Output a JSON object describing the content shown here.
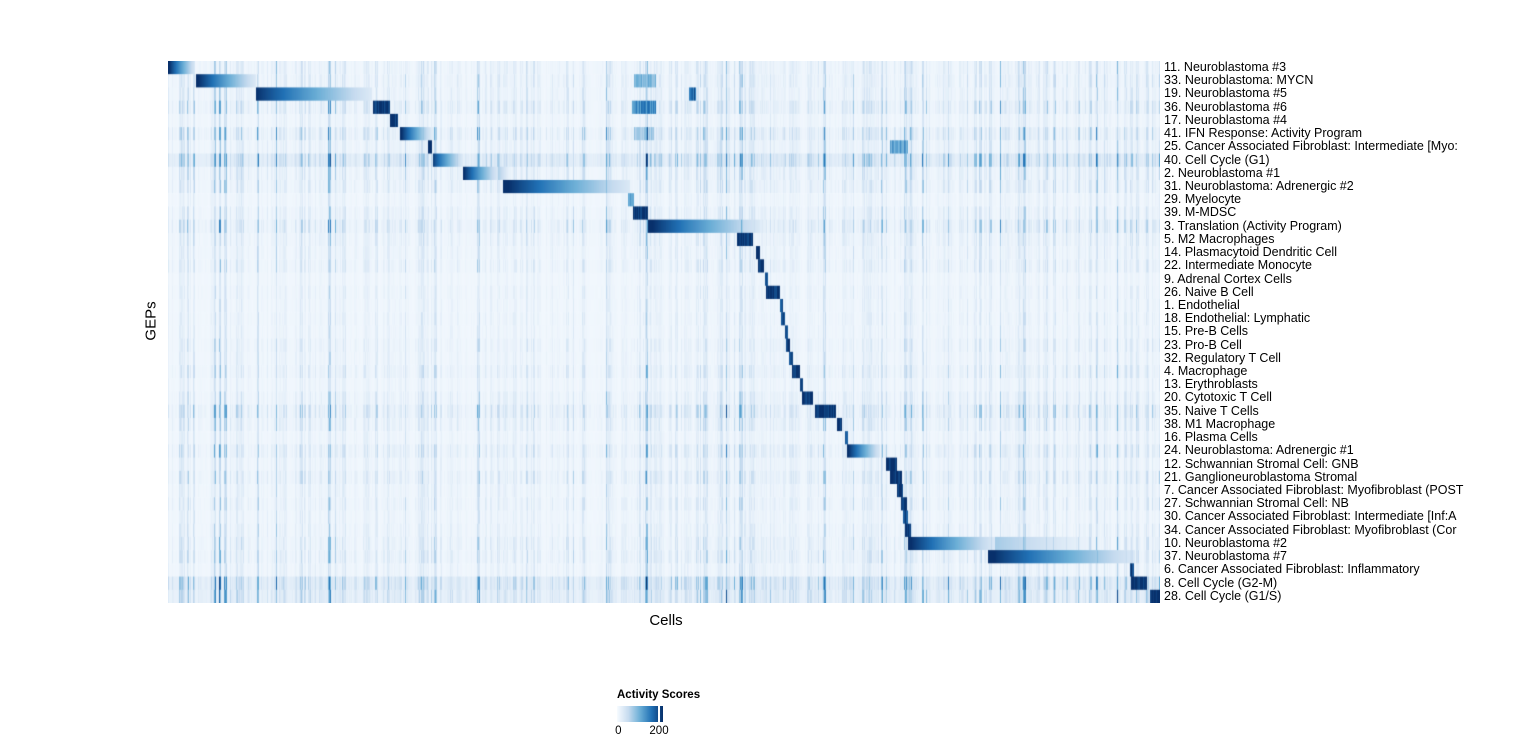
{
  "figure": {
    "xlabel": "Cells",
    "ylabel": "GEPs",
    "background_color": "#ffffff"
  },
  "legend": {
    "title": "Activity Scores",
    "ticks": [
      "0",
      "200"
    ]
  },
  "chart_data": {
    "type": "heatmap",
    "xlabel": "Cells",
    "ylabel": "GEPs",
    "row_label_side": "right",
    "n_rows": 41,
    "colorbar": {
      "label": "Activity Scores",
      "ticks": [
        0,
        200
      ],
      "colormap": "white-to-dark-blue (Blues)",
      "stops": [
        "#f7fbff",
        "#c6dbef",
        "#6baed6",
        "#2171b5",
        "#08306b"
      ]
    },
    "background_streak_zones": [
      [
        0.225,
        0.27,
        1.3
      ],
      [
        0.3,
        0.34,
        1.2
      ],
      [
        0.465,
        0.5,
        1.6
      ],
      [
        0.56,
        0.625,
        1.4
      ],
      [
        0.7,
        0.755,
        1.5
      ],
      [
        0.925,
        1.0,
        1.7
      ]
    ],
    "rows": [
      {
        "label": "11. Neuroblastoma #3",
        "block": [
          0.0,
          0.027
        ],
        "peak": 1.0,
        "fade": true,
        "bg": 0.5
      },
      {
        "label": "33. Neuroblastoma: MYCN",
        "block": [
          0.028,
          0.088
        ],
        "peak": 1.0,
        "fade": true,
        "bg": 0.55,
        "extra": [
          [
            0.47,
            0.492,
            0.45
          ]
        ]
      },
      {
        "label": "19. Neuroblastoma #5",
        "block": [
          0.088,
          0.205
        ],
        "peak": 0.95,
        "fade": true,
        "bg": 0.5,
        "extra": [
          [
            0.525,
            0.532,
            0.8
          ]
        ]
      },
      {
        "label": "36. Neuroblastoma #6",
        "block": [
          0.206,
          0.224
        ],
        "peak": 1.0,
        "fade": false,
        "bg": 0.8,
        "extra": [
          [
            0.468,
            0.492,
            0.65
          ]
        ]
      },
      {
        "label": "17. Neuroblastoma #4",
        "block": [
          0.224,
          0.232
        ],
        "peak": 1.0,
        "fade": false,
        "bg": 0.35
      },
      {
        "label": "41. IFN Response: Activity Program",
        "block": [
          0.234,
          0.265
        ],
        "peak": 1.0,
        "fade": true,
        "bg": 0.9,
        "extra": [
          [
            0.47,
            0.49,
            0.35
          ]
        ]
      },
      {
        "label": "25. Cancer Associated Fibroblast: Intermediate [Myo:",
        "block": [
          0.262,
          0.266
        ],
        "peak": 1.0,
        "fade": false,
        "bg": 0.5,
        "extra": [
          [
            0.728,
            0.746,
            0.55
          ]
        ]
      },
      {
        "label": "40. Cell Cycle (G1)",
        "block": [
          0.267,
          0.297
        ],
        "peak": 0.9,
        "fade": true,
        "bg": 1.1,
        "wash": 0.045
      },
      {
        "label": "2. Neuroblastoma #1",
        "block": [
          0.297,
          0.332
        ],
        "peak": 1.0,
        "fade": true,
        "bg": 0.6,
        "tail": 0.345
      },
      {
        "label": "31. Neuroblastoma: Adrenergic #2",
        "block": [
          0.338,
          0.466
        ],
        "peak": 1.0,
        "fade": true,
        "bg": 0.6
      },
      {
        "label": "29. Myelocyte",
        "block": [
          0.464,
          0.47
        ],
        "peak": 0.55,
        "fade": false,
        "bg": 0.3
      },
      {
        "label": "39. M-MDSC",
        "block": [
          0.469,
          0.484
        ],
        "peak": 1.0,
        "fade": false,
        "bg": 0.5
      },
      {
        "label": "3. Translation (Activity Program)",
        "block": [
          0.484,
          0.597
        ],
        "peak": 1.0,
        "fade": true,
        "bg": 0.85
      },
      {
        "label": "5. M2 Macrophages",
        "block": [
          0.574,
          0.59
        ],
        "peak": 1.0,
        "fade": false,
        "bg": 0.5
      },
      {
        "label": "14. Plasmacytoid Dendritic Cell",
        "block": [
          0.593,
          0.597
        ],
        "peak": 1.0,
        "fade": false,
        "bg": 0.4
      },
      {
        "label": "22. Intermediate Monocyte",
        "block": [
          0.595,
          0.601
        ],
        "peak": 1.0,
        "fade": false,
        "bg": 0.5
      },
      {
        "label": "9. Adrenal Cortex Cells",
        "block": [
          0.602,
          0.605
        ],
        "peak": 0.85,
        "fade": false,
        "bg": 0.25
      },
      {
        "label": "26. Naive B Cell",
        "block": [
          0.603,
          0.617
        ],
        "peak": 1.0,
        "fade": false,
        "bg": 0.35
      },
      {
        "label": "1. Endothelial",
        "block": [
          0.617,
          0.62
        ],
        "peak": 0.9,
        "fade": false,
        "bg": 0.3
      },
      {
        "label": "18. Endothelial: Lymphatic",
        "block": [
          0.618,
          0.622
        ],
        "peak": 0.85,
        "fade": false,
        "bg": 0.35
      },
      {
        "label": "15. Pre-B Cells",
        "block": [
          0.622,
          0.625
        ],
        "peak": 0.85,
        "fade": false,
        "bg": 0.3
      },
      {
        "label": "23. Pro-B Cell",
        "block": [
          0.623,
          0.627
        ],
        "peak": 1.0,
        "fade": false,
        "bg": 0.45
      },
      {
        "label": "32. Regulatory T Cell",
        "block": [
          0.626,
          0.63
        ],
        "peak": 0.9,
        "fade": false,
        "bg": 0.35
      },
      {
        "label": "4. Macrophage",
        "block": [
          0.629,
          0.637
        ],
        "peak": 1.0,
        "fade": false,
        "bg": 0.55
      },
      {
        "label": "13. Erythroblasts",
        "block": [
          0.637,
          0.64
        ],
        "peak": 0.85,
        "fade": false,
        "bg": 0.3
      },
      {
        "label": "20. Cytotoxic T Cell",
        "block": [
          0.639,
          0.65
        ],
        "peak": 1.0,
        "fade": false,
        "bg": 0.5
      },
      {
        "label": "35. Naive T Cells",
        "block": [
          0.652,
          0.674
        ],
        "peak": 1.0,
        "fade": false,
        "bg": 0.9
      },
      {
        "label": "38. M1 Macrophage",
        "block": [
          0.675,
          0.68
        ],
        "peak": 1.0,
        "fade": false,
        "bg": 0.6
      },
      {
        "label": "16. Plasma Cells",
        "block": [
          0.683,
          0.686
        ],
        "peak": 0.9,
        "fade": false,
        "bg": 0.35
      },
      {
        "label": "24. Neuroblastoma: Adrenergic #1",
        "block": [
          0.685,
          0.718
        ],
        "peak": 1.0,
        "fade": true,
        "bg": 0.7
      },
      {
        "label": "12. Schwannian Stromal Cell: GNB",
        "block": [
          0.724,
          0.735
        ],
        "peak": 1.0,
        "fade": false,
        "bg": 0.4
      },
      {
        "label": "21. Ganglioneuroblastoma Stromal",
        "block": [
          0.728,
          0.74
        ],
        "peak": 1.0,
        "fade": false,
        "bg": 0.65
      },
      {
        "label": "7. Cancer Associated Fibroblast: Myofibroblast (POST",
        "block": [
          0.735,
          0.741
        ],
        "peak": 1.0,
        "fade": false,
        "bg": 0.4
      },
      {
        "label": "27. Schwannian Stromal Cell: NB",
        "block": [
          0.739,
          0.745
        ],
        "peak": 1.0,
        "fade": false,
        "bg": 0.5
      },
      {
        "label": "30. Cancer Associated Fibroblast: Intermediate [Inf:A",
        "block": [
          0.741,
          0.746
        ],
        "peak": 0.9,
        "fade": false,
        "bg": 0.35
      },
      {
        "label": "34. Cancer Associated Fibroblast: Myofibroblast (Cor",
        "block": [
          0.743,
          0.749
        ],
        "peak": 1.0,
        "fade": false,
        "bg": 0.45
      },
      {
        "label": "10. Neuroblastoma #2",
        "block": [
          0.746,
          0.834
        ],
        "peak": 1.0,
        "fade": true,
        "bg": 0.6,
        "tail": 0.934
      },
      {
        "label": "37. Neuroblastoma #7",
        "block": [
          0.827,
          0.975
        ],
        "peak": 1.0,
        "fade": true,
        "bg": 0.65
      },
      {
        "label": "6. Cancer Associated Fibroblast: Inflammatory",
        "block": [
          0.97,
          0.974
        ],
        "peak": 0.95,
        "fade": false,
        "bg": 0.4
      },
      {
        "label": "8. Cell Cycle (G2-M)",
        "block": [
          0.971,
          0.987
        ],
        "peak": 1.0,
        "fade": false,
        "bg": 1.1,
        "wash": 0.04
      },
      {
        "label": "28. Cell Cycle (G1/S)",
        "block": [
          0.99,
          1.0
        ],
        "peak": 1.0,
        "fade": false,
        "bg": 0.9,
        "wash": 0.03
      }
    ]
  }
}
